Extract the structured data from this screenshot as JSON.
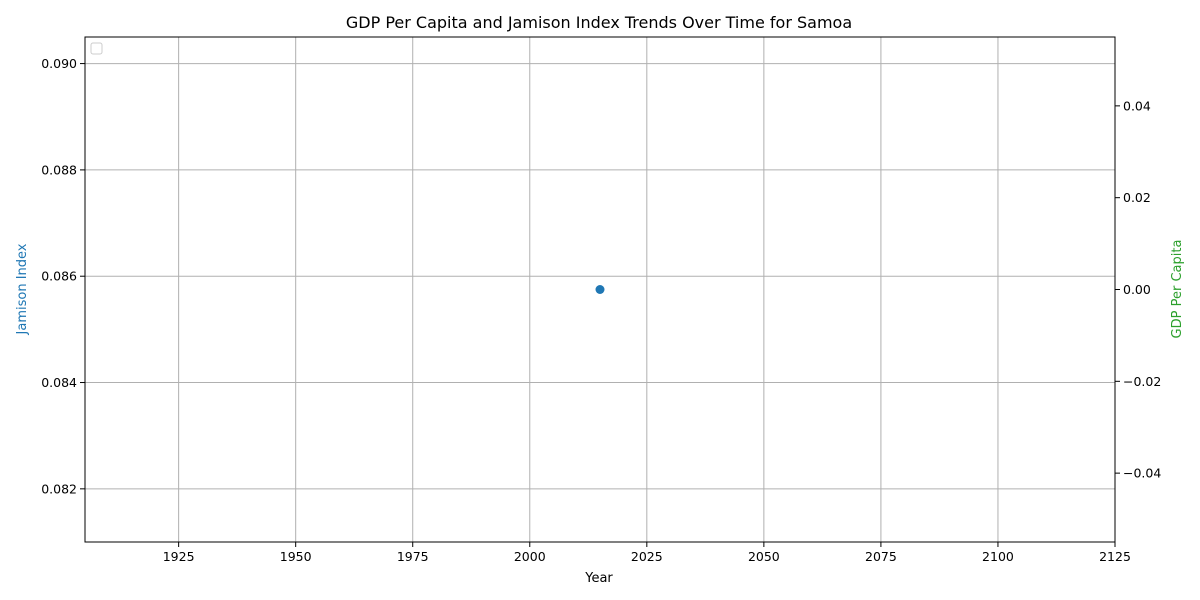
{
  "chart_data": {
    "type": "scatter",
    "title": "GDP Per Capita and Jamison Index Trends Over Time for Samoa",
    "xlabel": "Year",
    "ylabel_left": "Jamison Index",
    "ylabel_right": "GDP Per Capita",
    "xlim": [
      1905,
      2125
    ],
    "ylim_left": [
      0.081,
      0.0905
    ],
    "ylim_right": [
      -0.055,
      0.055
    ],
    "x_ticks": [
      "1925",
      "1950",
      "1975",
      "2000",
      "2025",
      "2050",
      "2075",
      "2100",
      "2125"
    ],
    "y_left_ticks": [
      "0.082",
      "0.084",
      "0.086",
      "0.088",
      "0.090"
    ],
    "y_right_ticks": [
      "−0.04",
      "−0.02",
      "0.00",
      "0.02",
      "0.04"
    ],
    "grid": true,
    "legend": "upper-left (empty)",
    "series": [
      {
        "axis": "left",
        "color": "#1f77b4",
        "points": [
          {
            "x": 2015,
            "y": 0.08575
          }
        ]
      },
      {
        "axis": "right",
        "color": "#2ca02c",
        "points": []
      }
    ]
  }
}
